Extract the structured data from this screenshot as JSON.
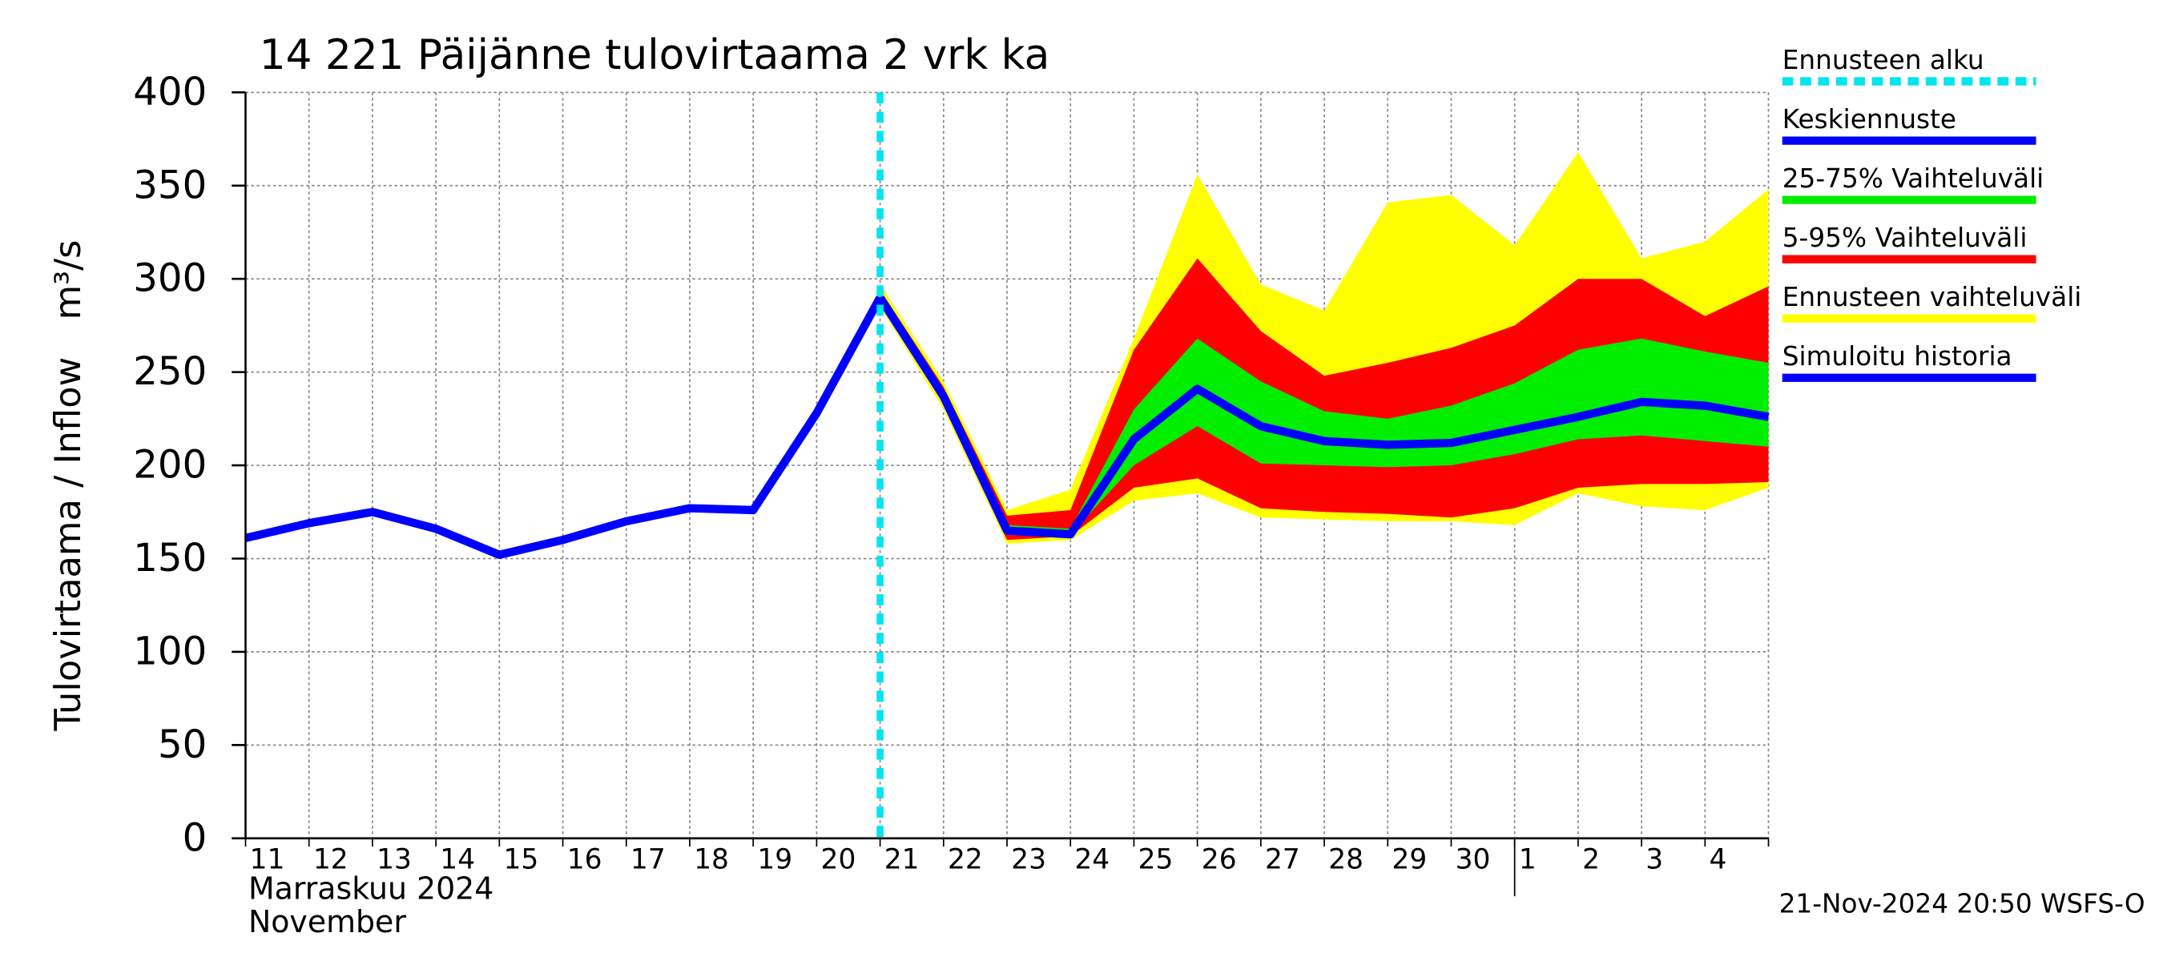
{
  "chart_data": {
    "type": "line",
    "title": "14 221 Päijänne tulovirtaama 2 vrk ka",
    "y_label": "Tulovirtaama / Inflow",
    "y_unit": "m³/s",
    "month_label": "Marraskuu 2024",
    "month_label_en": "November",
    "footer": "21-Nov-2024 20:50 WSFS-O",
    "categories": [
      "11",
      "12",
      "13",
      "14",
      "15",
      "16",
      "17",
      "18",
      "19",
      "20",
      "21",
      "22",
      "23",
      "24",
      "25",
      "26",
      "27",
      "28",
      "29",
      "30",
      "1",
      "2",
      "3",
      "4",
      null
    ],
    "month_break": "1",
    "ylim": [
      0,
      400
    ],
    "yticks": [
      0,
      50,
      100,
      150,
      200,
      250,
      300,
      350,
      400
    ],
    "grid": true,
    "series": [
      {
        "name": "Ennusteen alku",
        "color": "#00e5ee",
        "kind": "vline",
        "at": "21"
      },
      {
        "name": "Keskiennuste",
        "color": "#0000ff",
        "kind": "line",
        "values": [
          null,
          null,
          null,
          null,
          null,
          null,
          null,
          null,
          null,
          null,
          290,
          237,
          165,
          163,
          214,
          241,
          221,
          213,
          211,
          212,
          219,
          226,
          234,
          232,
          226
        ]
      },
      {
        "name": "25-75% Vaihteluväli",
        "color": "#00ee00",
        "kind": "band",
        "high": [
          null,
          null,
          null,
          null,
          null,
          null,
          null,
          null,
          null,
          null,
          292,
          240,
          168,
          166,
          230,
          268,
          245,
          229,
          225,
          232,
          244,
          262,
          268,
          261,
          255
        ],
        "low": [
          null,
          null,
          null,
          null,
          null,
          null,
          null,
          null,
          null,
          null,
          288,
          235,
          163,
          163,
          200,
          221,
          201,
          200,
          199,
          200,
          206,
          214,
          216,
          213,
          210
        ]
      },
      {
        "name": "5-95% Vaihteluväli",
        "color": "#ff0000",
        "kind": "band",
        "high": [
          null,
          null,
          null,
          null,
          null,
          null,
          null,
          null,
          null,
          null,
          294,
          242,
          173,
          176,
          262,
          311,
          272,
          248,
          255,
          263,
          275,
          300,
          300,
          280,
          296
        ],
        "low": [
          null,
          null,
          null,
          null,
          null,
          null,
          null,
          null,
          null,
          null,
          287,
          233,
          160,
          162,
          188,
          193,
          177,
          175,
          174,
          172,
          177,
          188,
          190,
          190,
          191
        ]
      },
      {
        "name": "Ennusteen vaihteluväli",
        "color": "#ffff00",
        "kind": "band",
        "high": [
          null,
          null,
          null,
          null,
          null,
          null,
          null,
          null,
          null,
          null,
          297,
          245,
          176,
          187,
          268,
          356,
          297,
          283,
          341,
          345,
          318,
          368,
          311,
          320,
          348
        ],
        "low": [
          null,
          null,
          null,
          null,
          null,
          null,
          null,
          null,
          null,
          null,
          285,
          230,
          158,
          160,
          181,
          185,
          172,
          171,
          170,
          170,
          168,
          185,
          178,
          176,
          188
        ]
      },
      {
        "name": "Simuloitu historia",
        "color": "#0000ff",
        "kind": "line",
        "values": [
          161,
          169,
          175,
          166,
          152,
          160,
          170,
          177,
          176,
          228,
          290,
          null,
          null,
          null,
          null,
          null,
          null,
          null,
          null,
          null,
          null,
          null,
          null,
          null,
          null
        ]
      }
    ]
  }
}
